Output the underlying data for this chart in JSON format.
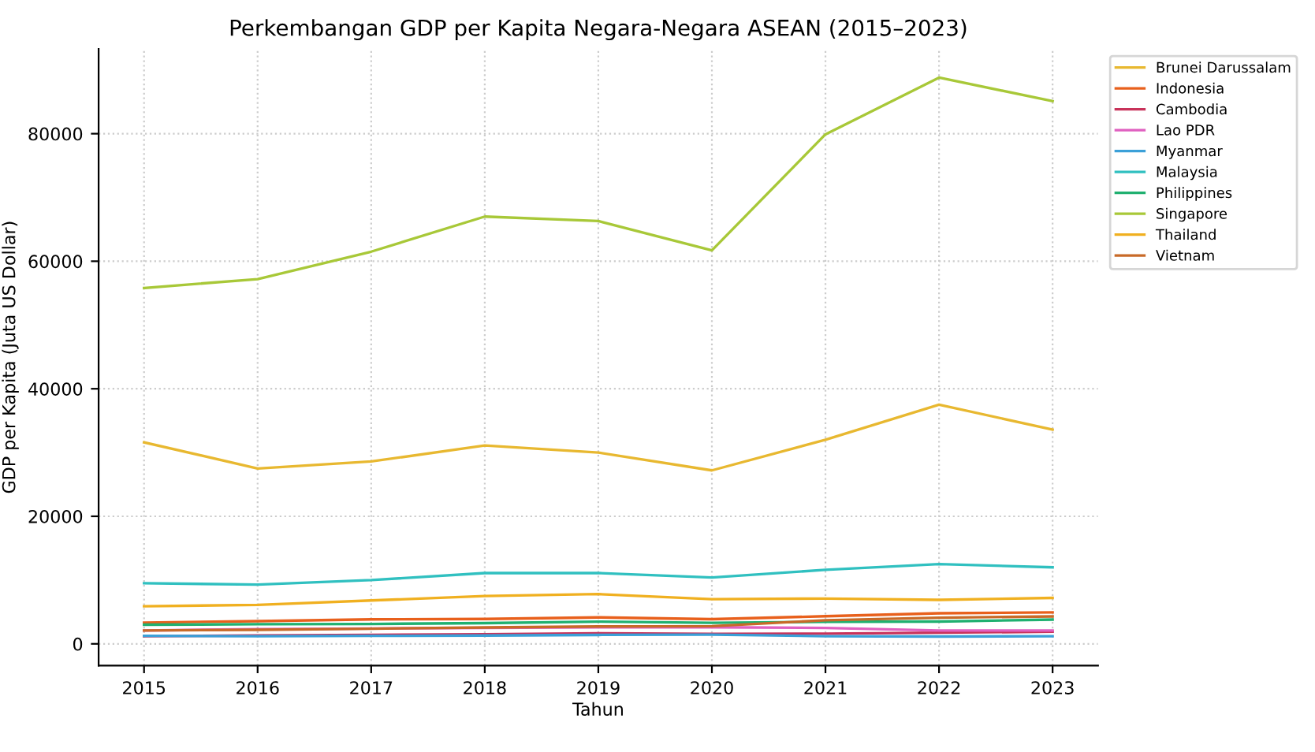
{
  "chart_data": {
    "type": "line",
    "title": "Perkembangan GDP per Kapita Negara-Negara ASEAN (2015–2023)",
    "xlabel": "Tahun",
    "ylabel": "GDP per Kapita (Juta US Dollar)",
    "x": [
      2015,
      2016,
      2017,
      2018,
      2019,
      2020,
      2021,
      2022,
      2023
    ],
    "xlim": [
      2014.6,
      2023.4
    ],
    "xticks": [
      2015,
      2016,
      2017,
      2018,
      2019,
      2020,
      2021,
      2022,
      2023
    ],
    "ylim": [
      -3400,
      93300
    ],
    "yticks": [
      0,
      20000,
      40000,
      60000,
      80000
    ],
    "grid": true,
    "legend": "top right",
    "marker": "none",
    "line_style": "solid",
    "series": [
      {
        "name": "Brunei Darussalam",
        "color": "#e8b830",
        "values": [
          31600,
          27500,
          28600,
          31100,
          30000,
          27200,
          32000,
          37500,
          33600
        ]
      },
      {
        "name": "Indonesia",
        "color": "#e8601c",
        "values": [
          3330,
          3560,
          3840,
          3900,
          4150,
          3870,
          4330,
          4790,
          4940
        ]
      },
      {
        "name": "Cambodia",
        "color": "#c8325a",
        "values": [
          1200,
          1300,
          1400,
          1500,
          1650,
          1550,
          1600,
          1750,
          1900
        ]
      },
      {
        "name": "Lao PDR",
        "color": "#e060c0",
        "values": [
          2100,
          2300,
          2400,
          2500,
          2600,
          2600,
          2500,
          2100,
          2100
        ]
      },
      {
        "name": "Myanmar",
        "color": "#3ba0d8",
        "values": [
          1250,
          1200,
          1250,
          1300,
          1400,
          1450,
          1200,
          1150,
          1200
        ]
      },
      {
        "name": "Malaysia",
        "color": "#30c0c0",
        "values": [
          9500,
          9300,
          10000,
          11100,
          11100,
          10400,
          11600,
          12500,
          12000
        ]
      },
      {
        "name": "Philippines",
        "color": "#20b070",
        "values": [
          3000,
          3070,
          3120,
          3250,
          3480,
          3300,
          3460,
          3500,
          3800
        ]
      },
      {
        "name": "Singapore",
        "color": "#a8c838",
        "values": [
          55800,
          57200,
          61500,
          67000,
          66300,
          61700,
          79900,
          88800,
          85100
        ]
      },
      {
        "name": "Thailand",
        "color": "#f0b020",
        "values": [
          5900,
          6100,
          6800,
          7500,
          7800,
          7000,
          7100,
          6900,
          7200
        ]
      },
      {
        "name": "Vietnam",
        "color": "#c86a28",
        "values": [
          2100,
          2200,
          2370,
          2570,
          2720,
          2770,
          3700,
          4100,
          4300
        ]
      }
    ]
  }
}
